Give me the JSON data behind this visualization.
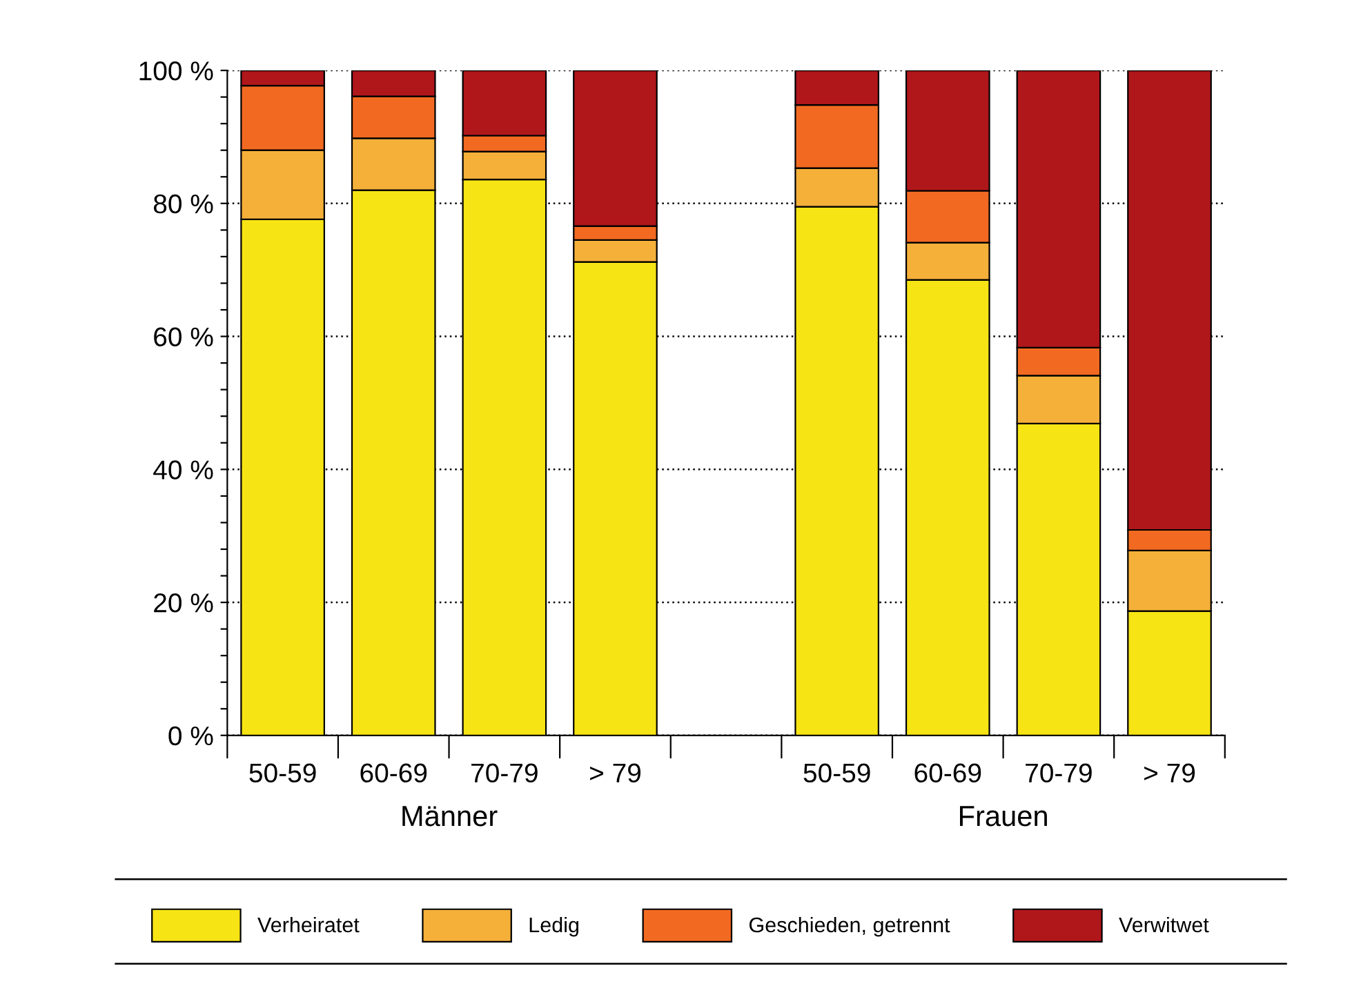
{
  "chart_data": {
    "type": "bar",
    "stacked": true,
    "categories": [
      "50-59",
      "60-69",
      "70-79",
      "> 79",
      null,
      "50-59",
      "60-69",
      "70-79",
      "> 79"
    ],
    "series": [
      {
        "name": "Verheiratet",
        "color": "#f7e414",
        "values": [
          77.6,
          82.0,
          83.6,
          71.2,
          null,
          79.5,
          68.5,
          46.9,
          18.7
        ]
      },
      {
        "name": "Ledig",
        "color": "#f5b03a",
        "values": [
          10.4,
          7.8,
          4.2,
          3.3,
          null,
          5.8,
          5.6,
          7.2,
          9.1
        ]
      },
      {
        "name": "Geschieden, getrennt",
        "color": "#f26a21",
        "values": [
          9.7,
          6.3,
          2.4,
          2.1,
          null,
          9.5,
          7.8,
          4.2,
          3.1
        ]
      },
      {
        "name": "Verwitwet",
        "color": "#b0171b",
        "values": [
          2.3,
          3.9,
          9.8,
          23.4,
          null,
          5.2,
          18.1,
          41.7,
          69.1
        ]
      }
    ],
    "ylim": [
      0,
      100
    ],
    "yticks": [
      {
        "value": 0,
        "label": "0 %"
      },
      {
        "value": 4,
        "label": null
      },
      {
        "value": 8,
        "label": null
      },
      {
        "value": 12,
        "label": null
      },
      {
        "value": 16,
        "label": null
      },
      {
        "value": 20,
        "label": "20 %"
      },
      {
        "value": 24,
        "label": null
      },
      {
        "value": 28,
        "label": null
      },
      {
        "value": 32,
        "label": null
      },
      {
        "value": 36,
        "label": null
      },
      {
        "value": 40,
        "label": "40 %"
      },
      {
        "value": 44,
        "label": null
      },
      {
        "value": 48,
        "label": null
      },
      {
        "value": 52,
        "label": null
      },
      {
        "value": 56,
        "label": null
      },
      {
        "value": 60,
        "label": "60 %"
      },
      {
        "value": 64,
        "label": null
      },
      {
        "value": 68,
        "label": null
      },
      {
        "value": 72,
        "label": null
      },
      {
        "value": 76,
        "label": null
      },
      {
        "value": 80,
        "label": "80 %"
      },
      {
        "value": 84,
        "label": null
      },
      {
        "value": 88,
        "label": null
      },
      {
        "value": 92,
        "label": null
      },
      {
        "value": 96,
        "label": null
      },
      {
        "value": 100,
        "label": "100 %"
      }
    ],
    "grid": "y",
    "legend": "bottom",
    "annotations": [
      "Männer",
      "Frauen"
    ]
  }
}
